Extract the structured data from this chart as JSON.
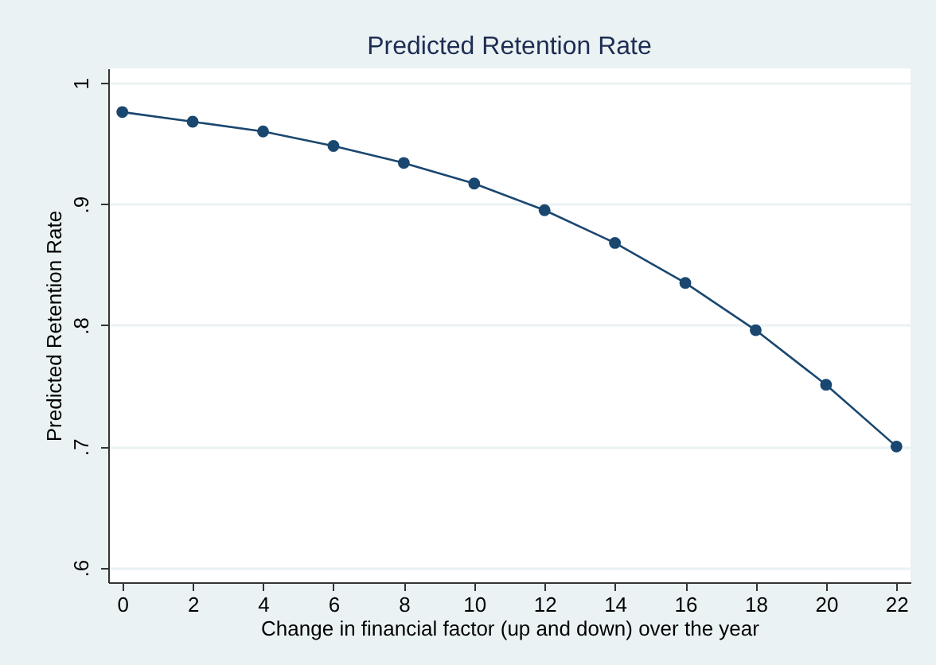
{
  "chart_data": {
    "type": "line",
    "title": "Predicted Retention Rate",
    "xlabel": "Change in financial factor (up and down) over the year",
    "ylabel": "Predicted Retention Rate",
    "x": [
      0,
      2,
      4,
      6,
      8,
      10,
      12,
      14,
      16,
      18,
      20,
      22
    ],
    "series": [
      {
        "color": "#1a476f",
        "values": [
          0.976,
          0.968,
          0.96,
          0.948,
          0.934,
          0.917,
          0.895,
          0.868,
          0.835,
          0.796,
          0.751,
          0.7
        ]
      }
    ],
    "xlim": [
      -0.4,
      22.4
    ],
    "ylim": [
      0.588,
      1.012
    ],
    "xticks": [
      0,
      2,
      4,
      6,
      8,
      10,
      12,
      14,
      16,
      18,
      20,
      22
    ],
    "yticks": [
      {
        "value": 0.6,
        "label": ".6"
      },
      {
        "value": 0.7,
        "label": ".7"
      },
      {
        "value": 0.8,
        "label": ".8"
      },
      {
        "value": 0.9,
        "label": ".9"
      },
      1
    ],
    "grid": "y",
    "marker": "circle",
    "line_style": "solid"
  }
}
